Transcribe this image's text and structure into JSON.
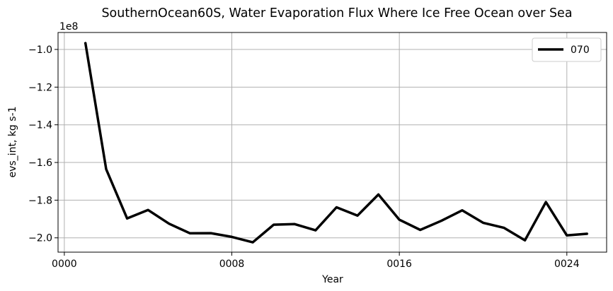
{
  "chart_data": {
    "type": "line",
    "title": "SouthernOcean60S, Water Evaporation Flux Where Ice Free Ocean over Sea",
    "xlabel": "Year",
    "ylabel": "evs_int, kg s-1",
    "offset_text": "1e8",
    "xlim": [
      -0.3,
      25.9
    ],
    "ylim": [
      -2.076,
      -0.91
    ],
    "x_ticks": [
      0,
      8,
      16,
      24
    ],
    "x_tick_labels": [
      "0000",
      "0008",
      "0016",
      "0024"
    ],
    "y_ticks": [
      -1.0,
      -1.2,
      -1.4,
      -1.6,
      -1.8,
      -2.0
    ],
    "y_tick_labels": [
      "−1.0",
      "−1.2",
      "−1.4",
      "−1.6",
      "−1.8",
      "−2.0"
    ],
    "grid": true,
    "legend_position": "top-right",
    "series": [
      {
        "name": "070",
        "color": "#000000",
        "x": [
          1,
          2,
          3,
          4,
          5,
          6,
          7,
          8,
          9,
          10,
          11,
          12,
          13,
          14,
          15,
          16,
          17,
          18,
          19,
          20,
          21,
          22,
          23,
          24,
          25
        ],
        "values": [
          -0.962,
          -1.636,
          -1.897,
          -1.852,
          -1.925,
          -1.976,
          -1.975,
          -1.995,
          -2.024,
          -1.93,
          -1.927,
          -1.96,
          -1.838,
          -1.882,
          -1.77,
          -1.904,
          -1.958,
          -1.91,
          -1.854,
          -1.92,
          -1.947,
          -2.013,
          -1.81,
          -1.987,
          -1.978
        ]
      }
    ]
  }
}
